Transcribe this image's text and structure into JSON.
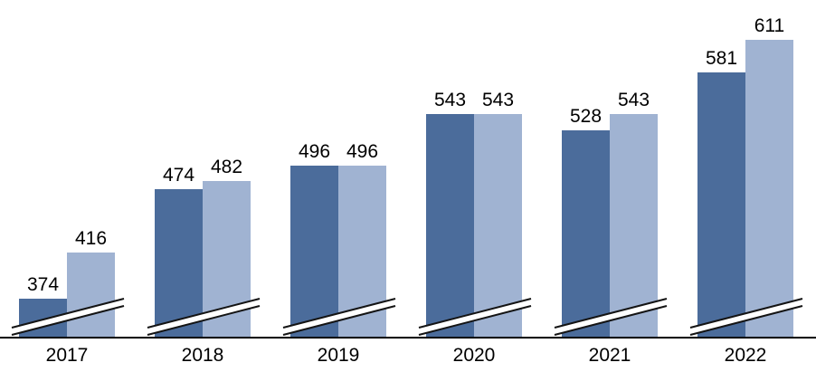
{
  "chart_data": {
    "type": "bar",
    "title": "",
    "xlabel": "",
    "ylabel": "",
    "categories": [
      "2017",
      "2018",
      "2019",
      "2020",
      "2021",
      "2022"
    ],
    "series": [
      {
        "name": "series-dark-blue",
        "color": "#4B6C9B",
        "values": [
          374,
          474,
          496,
          543,
          528,
          581
        ]
      },
      {
        "name": "series-light-blue",
        "color": "#A0B3D2",
        "values": [
          416,
          482,
          496,
          543,
          543,
          611
        ]
      }
    ],
    "data_labels": true,
    "legend": "none",
    "grid": false,
    "axis_break": true,
    "ylim_displayed": [
      339,
      648
    ],
    "axis_line_color": "#000000",
    "label_color": "#000000",
    "background": "#FFFFFF"
  }
}
